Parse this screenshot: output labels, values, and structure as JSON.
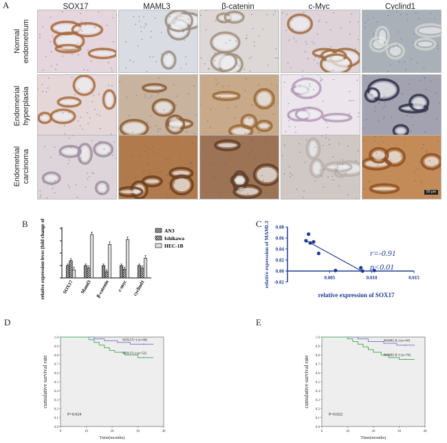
{
  "panel_a": {
    "letter": "A",
    "columns": [
      "SOX17",
      "MAML3",
      "β-catenin",
      "c-Myc",
      "Cyclind1"
    ],
    "rows": [
      {
        "label": "Normal endometrium"
      },
      {
        "label": "Endometrial hyperplasia"
      },
      {
        "label": "Endometrial carcinoma"
      }
    ],
    "scale_bar": "50 μm"
  },
  "panel_b": {
    "letter": "B",
    "chart_data": {
      "type": "bar",
      "ylabel": "relative expression leves (fold change of AN3)",
      "categories": [
        "SOX17",
        "Maml3",
        "β-catenin",
        "c-myc",
        "cyclind1"
      ],
      "ylim": [
        0,
        4
      ],
      "series": [
        {
          "name": "AN3",
          "values": [
            1.0,
            1.0,
            1.0,
            1.0,
            1.0
          ]
        },
        {
          "name": "Ishikawa",
          "values": [
            1.4,
            0.8,
            0.5,
            0.7,
            0.8
          ]
        },
        {
          "name": "HEC-1B",
          "values": [
            0.65,
            3.5,
            2.7,
            3.1,
            1.6
          ]
        }
      ]
    }
  },
  "panel_c": {
    "letter": "C",
    "chart_data": {
      "type": "scatter",
      "xlabel": "relative expression of SOX17",
      "ylabel": "relative expression of MAML3",
      "xlim": [
        0,
        0.015
      ],
      "ylim": [
        -0.02,
        0.08
      ],
      "xticks": [
        "0.005",
        "0.010",
        "0.015"
      ],
      "yticks": [
        "-0.02",
        "0.00",
        "0.02",
        "0.04",
        "0.06",
        "0.08"
      ],
      "points": [
        {
          "x": 0.0022,
          "y": 0.055
        },
        {
          "x": 0.0025,
          "y": 0.067
        },
        {
          "x": 0.0027,
          "y": 0.051
        },
        {
          "x": 0.0031,
          "y": 0.053
        },
        {
          "x": 0.0037,
          "y": 0.032
        },
        {
          "x": 0.0057,
          "y": 0.001
        },
        {
          "x": 0.0087,
          "y": 0.006
        },
        {
          "x": 0.0089,
          "y": 0.0
        },
        {
          "x": 0.0103,
          "y": 0.001
        }
      ],
      "fit_line": {
        "x": [
          0.002,
          0.0088
        ],
        "y": [
          0.057,
          0.0
        ]
      },
      "annotation_r": "r=-0.91",
      "annotation_p": "p<0.01"
    }
  },
  "panel_d": {
    "letter": "D",
    "chart_data": {
      "type": "line",
      "xlabel": "Time(months)",
      "ylabel": "cumulative survival rate",
      "xlim": [
        0,
        40
      ],
      "ylim": [
        0,
        1.0
      ],
      "xticks": [
        "0",
        "10",
        "20",
        "30",
        "40"
      ],
      "yticks": [
        "0.0",
        "0.1",
        "0.2",
        "0.3",
        "0.4",
        "0.5",
        "0.6",
        "0.7",
        "0.8",
        "0.9",
        "1.0"
      ],
      "series": [
        {
          "name": "SOX17(+) (n=68)",
          "color": "#7b7fc4",
          "x": [
            0,
            13,
            13,
            17,
            17,
            22,
            22,
            27,
            27,
            36
          ],
          "y": [
            1.0,
            1.0,
            0.98,
            0.98,
            0.96,
            0.96,
            0.94,
            0.94,
            0.92,
            0.92
          ]
        },
        {
          "name": "SOX17(-) (n=52)",
          "color": "#4fae5f",
          "x": [
            0,
            11,
            11,
            13,
            13,
            15,
            15,
            17,
            17,
            19,
            19,
            21,
            21,
            25,
            25,
            30,
            30,
            36
          ],
          "y": [
            1.0,
            1.0,
            0.97,
            0.97,
            0.94,
            0.94,
            0.91,
            0.91,
            0.88,
            0.88,
            0.85,
            0.85,
            0.83,
            0.83,
            0.8,
            0.8,
            0.77,
            0.77
          ]
        }
      ],
      "p_label": "P=0.024"
    }
  },
  "panel_e": {
    "letter": "E",
    "chart_data": {
      "type": "line",
      "xlabel": "Time(months)",
      "ylabel": "cumulative survival rate",
      "xlim": [
        0,
        40
      ],
      "ylim": [
        0,
        1.0
      ],
      "xticks": [
        "0",
        "10",
        "20",
        "30",
        "40"
      ],
      "yticks": [
        "0.0",
        "0.1",
        "0.2",
        "0.3",
        "0.4",
        "0.5",
        "0.6",
        "0.7",
        "0.8",
        "0.9",
        "1.0"
      ],
      "series": [
        {
          "name": "MAML3(-) (n=44)",
          "color": "#7b7fc4",
          "x": [
            0,
            14,
            14,
            18,
            18,
            24,
            24,
            29,
            29,
            36
          ],
          "y": [
            1.0,
            1.0,
            0.98,
            0.98,
            0.95,
            0.95,
            0.93,
            0.93,
            0.91,
            0.91
          ]
        },
        {
          "name": "MAML3(+) (n=76)",
          "color": "#4fae5f",
          "x": [
            0,
            10,
            10,
            12,
            12,
            14,
            14,
            16,
            16,
            18,
            18,
            20,
            20,
            23,
            23,
            26,
            26,
            30,
            30,
            36
          ],
          "y": [
            1.0,
            1.0,
            0.98,
            0.98,
            0.95,
            0.95,
            0.92,
            0.92,
            0.89,
            0.89,
            0.86,
            0.86,
            0.83,
            0.83,
            0.8,
            0.8,
            0.77,
            0.77,
            0.75,
            0.75
          ]
        }
      ],
      "p_label": "P=0.022"
    }
  }
}
